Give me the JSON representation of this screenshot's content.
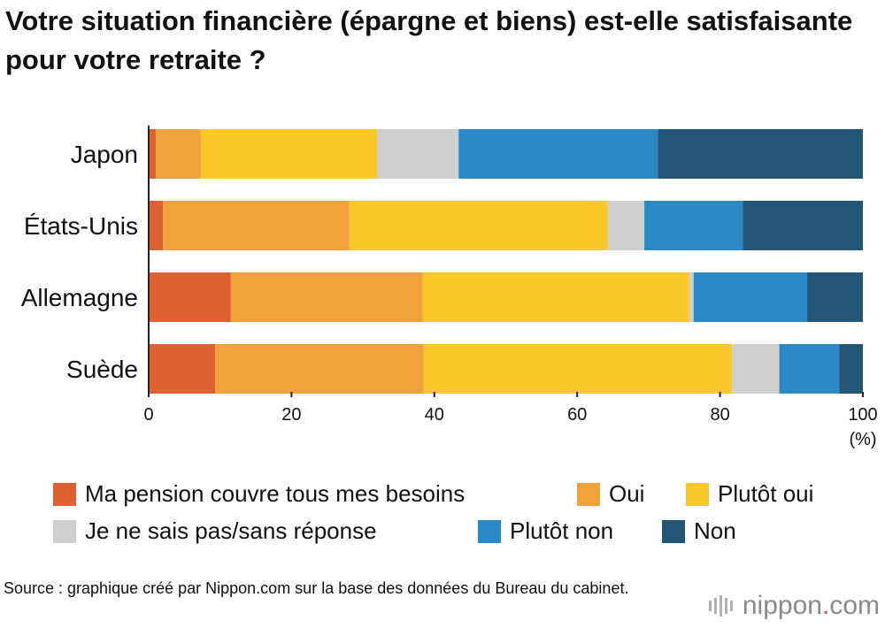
{
  "title": "Votre situation financière (épargne et biens) est-elle satisfaisante pour votre retraite ?",
  "source": "Source : graphique créé par Nippon.com sur la base des données du Bureau du cabinet.",
  "brand": {
    "name": "nippon",
    "dot": ".",
    "suffix": "com"
  },
  "chart_data": {
    "type": "bar",
    "orientation": "horizontal",
    "stacked": true,
    "categories": [
      "Japon",
      "États-Unis",
      "Allemagne",
      "Suède"
    ],
    "xlim": [
      0,
      100
    ],
    "xticks": [
      "0",
      "20",
      "40",
      "60",
      "80",
      "100"
    ],
    "xunit": "(%)",
    "grid": false,
    "legend_position": "bottom",
    "series": [
      {
        "name": "Ma pension couvre tous mes besoins",
        "color": "#de6134",
        "values": [
          1.0,
          2.0,
          11.5,
          9.3
        ]
      },
      {
        "name": "Oui",
        "color": "#f2a23c",
        "values": [
          6.3,
          26.1,
          26.9,
          29.2
        ]
      },
      {
        "name": "Plutôt oui",
        "color": "#fac829",
        "values": [
          24.7,
          36.2,
          37.3,
          43.2
        ]
      },
      {
        "name": "Je ne sais pas/sans réponse",
        "color": "#cfcfcf",
        "values": [
          11.4,
          5.1,
          0.6,
          6.6
        ]
      },
      {
        "name": "Plutôt non",
        "color": "#2a89c6",
        "values": [
          27.9,
          13.8,
          15.9,
          8.4
        ]
      },
      {
        "name": "Non",
        "color": "#235575",
        "values": [
          28.7,
          16.8,
          7.8,
          3.3
        ]
      }
    ]
  }
}
